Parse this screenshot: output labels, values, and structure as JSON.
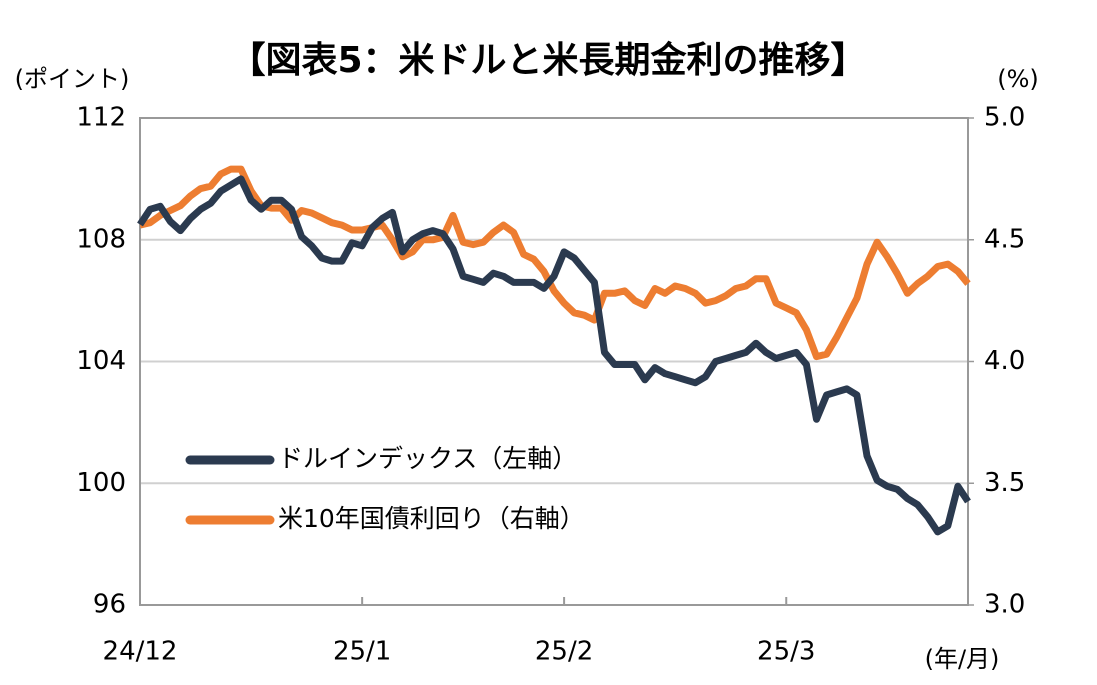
{
  "chart_data": {
    "type": "line",
    "title": "【図表5：米ドルと米長期金利の推移】",
    "y_label": "(ポイント)",
    "y2_label": "(%)",
    "x_label": "(年/月)",
    "categories": [
      "24/12",
      null,
      null,
      null,
      null,
      null,
      null,
      null,
      null,
      null,
      null,
      null,
      null,
      null,
      null,
      null,
      null,
      null,
      null,
      null,
      null,
      null,
      "25/1",
      null,
      null,
      null,
      null,
      null,
      null,
      null,
      null,
      null,
      null,
      null,
      null,
      null,
      null,
      null,
      null,
      null,
      null,
      null,
      "25/2",
      null,
      null,
      null,
      null,
      null,
      null,
      null,
      null,
      null,
      null,
      null,
      null,
      null,
      null,
      null,
      null,
      null,
      null,
      null,
      null,
      null,
      "25/3",
      null,
      null,
      null,
      null,
      null,
      null,
      null,
      null,
      null,
      null,
      null,
      null,
      null,
      null,
      null,
      null,
      null,
      null
    ],
    "series": [
      {
        "name": "ドルインデックス（左軸）",
        "color": "#2b3a4f",
        "axis": "y",
        "values": [
          108.5,
          109.0,
          109.1,
          108.6,
          108.3,
          108.7,
          109.0,
          109.2,
          109.6,
          109.8,
          110.0,
          109.3,
          109.0,
          109.3,
          109.3,
          109.0,
          108.1,
          107.8,
          107.4,
          107.3,
          107.3,
          107.9,
          107.8,
          108.4,
          108.7,
          108.9,
          107.6,
          108.0,
          108.2,
          108.3,
          108.2,
          107.7,
          106.8,
          106.7,
          106.6,
          106.9,
          106.8,
          106.6,
          106.6,
          106.6,
          106.4,
          106.8,
          107.6,
          107.4,
          107.0,
          106.6,
          104.3,
          103.9,
          103.9,
          103.9,
          103.4,
          103.8,
          103.6,
          103.5,
          103.4,
          103.3,
          103.5,
          104.0,
          104.1,
          104.2,
          104.3,
          104.6,
          104.3,
          104.1,
          104.2,
          104.3,
          103.9,
          102.1,
          102.9,
          103.0,
          103.1,
          102.9,
          100.9,
          100.1,
          99.9,
          99.8,
          99.5,
          99.3,
          98.9,
          98.4,
          98.6,
          99.9,
          99.4
        ]
      },
      {
        "name": "米10年国債利回り（右軸）",
        "color": "#ed7d31",
        "axis": "y2",
        "values": [
          4.56,
          4.57,
          4.6,
          4.62,
          4.64,
          4.68,
          4.71,
          4.72,
          4.77,
          4.79,
          4.79,
          4.7,
          4.64,
          4.63,
          4.63,
          4.58,
          4.62,
          4.61,
          4.59,
          4.57,
          4.56,
          4.54,
          4.54,
          4.55,
          4.56,
          4.5,
          4.43,
          4.45,
          4.5,
          4.5,
          4.51,
          4.6,
          4.49,
          4.48,
          4.49,
          4.53,
          4.56,
          4.53,
          4.44,
          4.42,
          4.37,
          4.29,
          4.24,
          4.2,
          4.19,
          4.17,
          4.28,
          4.28,
          4.29,
          4.25,
          4.23,
          4.3,
          4.28,
          4.31,
          4.3,
          4.28,
          4.24,
          4.25,
          4.27,
          4.3,
          4.31,
          4.34,
          4.34,
          4.24,
          4.22,
          4.2,
          4.13,
          4.02,
          4.03,
          4.1,
          4.18,
          4.26,
          4.4,
          4.49,
          4.43,
          4.36,
          4.28,
          4.32,
          4.35,
          4.39,
          4.4,
          4.37,
          4.32
        ]
      }
    ],
    "ylim": [
      96,
      112
    ],
    "yticks": [
      96,
      100,
      104,
      108,
      112
    ],
    "y2lim": [
      3,
      5
    ],
    "y2ticks": [
      {
        "value": 3,
        "label": "3.0"
      },
      3.5,
      {
        "value": 4,
        "label": "4.0"
      },
      4.5,
      {
        "value": 5,
        "label": "5.0"
      }
    ],
    "grid": true,
    "legend": "lower left"
  }
}
